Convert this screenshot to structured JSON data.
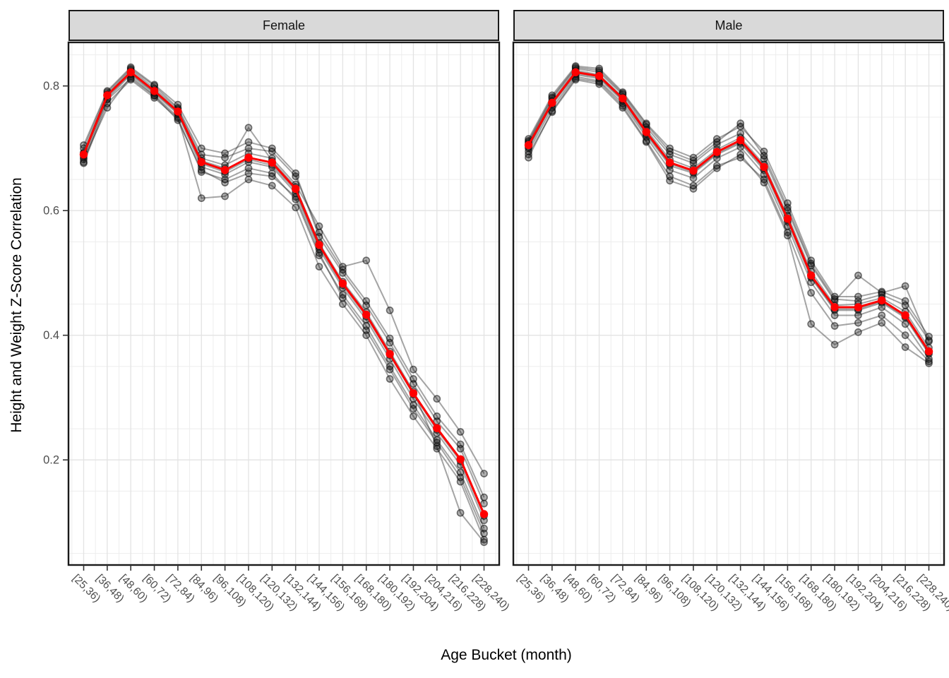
{
  "figure": {
    "background": "#FFFFFF"
  },
  "titles": {
    "y_axis": "Height and Weight Z-Score Correlation",
    "x_axis": "Age Bucket (month)"
  },
  "facets": [
    "Female",
    "Male"
  ],
  "colors": {
    "mean_line": "#FF0000",
    "individual_line": "rgba(40,40,40,0.42)",
    "individual_point_fill": "rgba(25,25,25,0.34)",
    "individual_point_stroke": "rgba(0,0,0,0.52)",
    "grid_major": "#E3E3E3",
    "grid_minor": "#EDEDED",
    "panel_border": "#1A1A1A",
    "strip_background": "#D9D9D9",
    "tick_label": "#4D4D4D",
    "axis_tick": "#333333"
  },
  "chart_data": {
    "type": "line",
    "title": "",
    "xlabel": "Age Bucket (month)",
    "ylabel": "Height and Weight Z-Score Correlation",
    "legend": "none",
    "grid": "on",
    "y_ticks": [
      0.2,
      0.4,
      0.6,
      0.8
    ],
    "ylim": [
      0.03,
      0.87
    ],
    "categories": [
      "[25,36)",
      "[36,48)",
      "[48,60)",
      "[60,72)",
      "[72,84)",
      "[84,96)",
      "[96,108)",
      "[108,120)",
      "[120,132)",
      "[132,144)",
      "[144,156)",
      "[156,168)",
      "[168,180)",
      "[180,192)",
      "[192,204)",
      "[204,216)",
      "[216,228)",
      "[228,240)"
    ],
    "panels": [
      {
        "facet": "Female",
        "mean_series": {
          "name": "mean",
          "values": [
            0.69,
            0.785,
            0.822,
            0.792,
            0.759,
            0.678,
            0.665,
            0.685,
            0.677,
            0.635,
            0.545,
            0.483,
            0.433,
            0.37,
            0.307,
            0.251,
            0.201,
            0.113
          ]
        },
        "individual_series": [
          [
            0.7,
            0.79,
            0.828,
            0.8,
            0.765,
            0.69,
            0.685,
            0.7,
            0.695,
            0.655,
            0.565,
            0.505,
            0.455,
            0.395,
            0.33,
            0.27,
            0.225,
            0.14
          ],
          [
            0.676,
            0.772,
            0.81,
            0.781,
            0.748,
            0.662,
            0.65,
            0.668,
            0.66,
            0.618,
            0.528,
            0.465,
            0.415,
            0.35,
            0.288,
            0.232,
            0.18,
            0.09
          ],
          [
            0.693,
            0.787,
            0.826,
            0.796,
            0.763,
            0.684,
            0.673,
            0.692,
            0.684,
            0.642,
            0.575,
            0.51,
            0.52,
            0.44,
            0.345,
            0.298,
            0.245,
            0.178
          ],
          [
            0.685,
            0.78,
            0.818,
            0.788,
            0.755,
            0.67,
            0.658,
            0.678,
            0.67,
            0.628,
            0.538,
            0.476,
            0.425,
            0.362,
            0.298,
            0.243,
            0.192,
            0.103
          ],
          [
            0.682,
            0.765,
            0.815,
            0.785,
            0.75,
            0.62,
            0.623,
            0.65,
            0.64,
            0.605,
            0.51,
            0.45,
            0.4,
            0.33,
            0.27,
            0.218,
            0.165,
            0.072
          ],
          [
            0.688,
            0.783,
            0.82,
            0.79,
            0.757,
            0.675,
            0.662,
            0.682,
            0.673,
            0.632,
            0.542,
            0.48,
            0.43,
            0.368,
            0.305,
            0.248,
            0.198,
            0.11
          ],
          [
            0.692,
            0.786,
            0.823,
            0.793,
            0.76,
            0.68,
            0.668,
            0.733,
            0.68,
            0.638,
            0.548,
            0.486,
            0.437,
            0.374,
            0.31,
            0.222,
            0.115,
            0.068
          ],
          [
            0.678,
            0.778,
            0.812,
            0.784,
            0.745,
            0.665,
            0.645,
            0.66,
            0.655,
            0.622,
            0.532,
            0.46,
            0.408,
            0.345,
            0.282,
            0.228,
            0.172,
            0.082
          ],
          [
            0.705,
            0.792,
            0.83,
            0.802,
            0.77,
            0.7,
            0.692,
            0.71,
            0.7,
            0.66,
            0.558,
            0.5,
            0.448,
            0.388,
            0.322,
            0.262,
            0.218,
            0.13
          ]
        ]
      },
      {
        "facet": "Male",
        "mean_series": {
          "name": "mean",
          "values": [
            0.705,
            0.773,
            0.822,
            0.816,
            0.78,
            0.726,
            0.677,
            0.664,
            0.694,
            0.713,
            0.67,
            0.587,
            0.496,
            0.445,
            0.445,
            0.456,
            0.432,
            0.374
          ]
        },
        "individual_series": [
          [
            0.715,
            0.785,
            0.832,
            0.828,
            0.79,
            0.74,
            0.7,
            0.685,
            0.715,
            0.735,
            0.695,
            0.612,
            0.52,
            0.462,
            0.462,
            0.47,
            0.455,
            0.398
          ],
          [
            0.71,
            0.78,
            0.828,
            0.822,
            0.786,
            0.734,
            0.69,
            0.676,
            0.706,
            0.724,
            0.683,
            0.6,
            0.512,
            0.455,
            0.496,
            0.468,
            0.479,
            0.39
          ],
          [
            0.7,
            0.77,
            0.818,
            0.812,
            0.776,
            0.722,
            0.672,
            0.66,
            0.69,
            0.708,
            0.665,
            0.582,
            0.492,
            0.44,
            0.44,
            0.452,
            0.428,
            0.37
          ],
          [
            0.695,
            0.765,
            0.815,
            0.808,
            0.772,
            0.718,
            0.665,
            0.652,
            0.684,
            0.702,
            0.658,
            0.575,
            0.485,
            0.432,
            0.432,
            0.445,
            0.418,
            0.362
          ],
          [
            0.708,
            0.776,
            0.825,
            0.818,
            0.782,
            0.73,
            0.682,
            0.668,
            0.698,
            0.717,
            0.674,
            0.592,
            0.502,
            0.448,
            0.45,
            0.46,
            0.438,
            0.38
          ],
          [
            0.69,
            0.758,
            0.81,
            0.803,
            0.765,
            0.71,
            0.648,
            0.635,
            0.668,
            0.69,
            0.645,
            0.56,
            0.418,
            0.385,
            0.405,
            0.42,
            0.381,
            0.355
          ],
          [
            0.702,
            0.772,
            0.82,
            0.814,
            0.778,
            0.724,
            0.675,
            0.662,
            0.692,
            0.71,
            0.668,
            0.585,
            0.494,
            0.442,
            0.442,
            0.454,
            0.43,
            0.372
          ],
          [
            0.685,
            0.76,
            0.812,
            0.806,
            0.768,
            0.712,
            0.655,
            0.64,
            0.672,
            0.685,
            0.65,
            0.565,
            0.468,
            0.415,
            0.42,
            0.432,
            0.4,
            0.358
          ],
          [
            0.712,
            0.782,
            0.83,
            0.825,
            0.788,
            0.738,
            0.695,
            0.68,
            0.71,
            0.74,
            0.688,
            0.605,
            0.515,
            0.458,
            0.455,
            0.465,
            0.448,
            0.392
          ]
        ]
      }
    ]
  }
}
